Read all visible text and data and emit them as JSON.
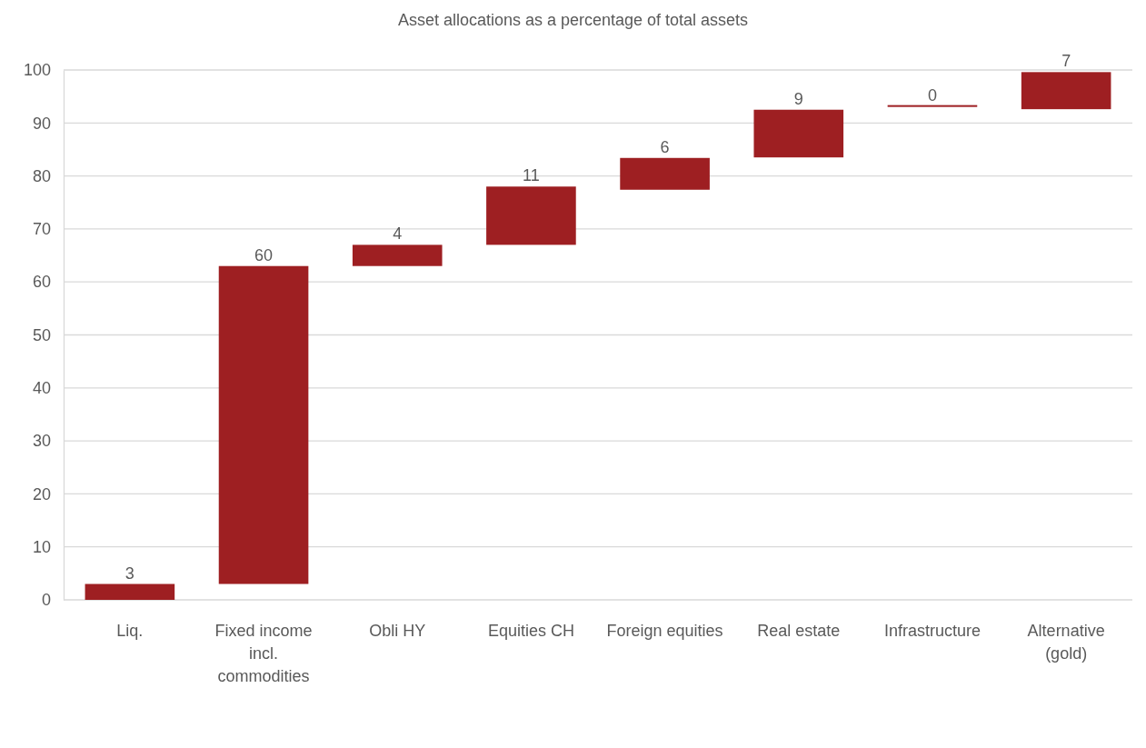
{
  "chart_data": {
    "type": "bar",
    "title": "Asset allocations as a percentage of total assets",
    "categories": [
      "Liq.",
      "Fixed income incl. commodities",
      "Obli HY",
      "Equities CH",
      "Foreign equities",
      "Real estate",
      "Infrastructure",
      "Alternative (gold)"
    ],
    "values": [
      3,
      60,
      4,
      11,
      6,
      9,
      0,
      7
    ],
    "base": [
      0,
      3,
      63,
      67,
      77.4,
      83.5,
      93.2,
      92.6
    ],
    "color": "#9e1f22",
    "ylim": [
      0,
      100
    ],
    "yticks": [
      0,
      10,
      20,
      30,
      40,
      50,
      60,
      70,
      80,
      90,
      100
    ],
    "grid": "y",
    "data_labels": true
  }
}
